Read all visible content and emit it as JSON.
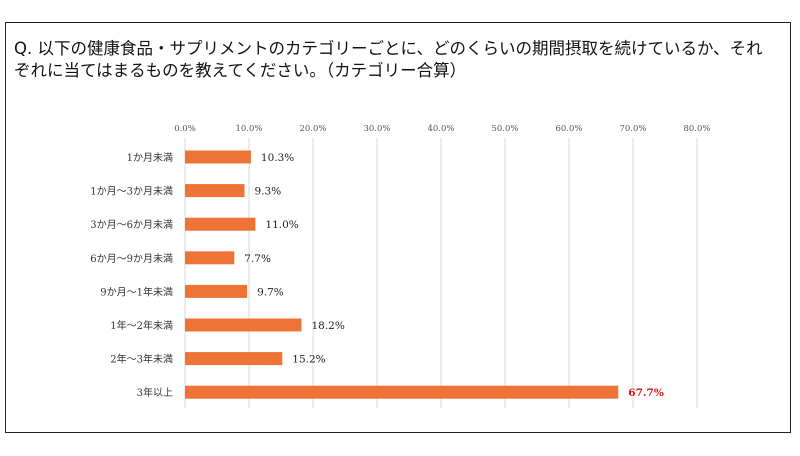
{
  "question": "Q. 以下の健康食品・サプリメントのカテゴリーごとに、どのくらいの期間摂取を続けているか、それぞれに当てはまるものを教えてください。（カテゴリー合算）",
  "colors": {
    "bar": "#ed7336",
    "highlight_label": "#d9140f",
    "grid": "#d9d9d9"
  },
  "chart_data": {
    "type": "bar",
    "orientation": "horizontal",
    "xlim": [
      0,
      80
    ],
    "x_ticks": [
      "0.0%",
      "10.0%",
      "20.0%",
      "30.0%",
      "40.0%",
      "50.0%",
      "60.0%",
      "70.0%",
      "80.0%"
    ],
    "tick_axis_position": "top",
    "grid": true,
    "categories": [
      "1か月未満",
      "1か月～3か月未満",
      "3か月～6か月未満",
      "6か月～9か月未満",
      "9か月～1年未満",
      "1年～2年未満",
      "2年～3年未満",
      "3年以上"
    ],
    "values": [
      10.3,
      9.3,
      11.0,
      7.7,
      9.7,
      18.2,
      15.2,
      67.7
    ],
    "labels": [
      "10.3%",
      "9.3%",
      "11.0%",
      "7.7%",
      "9.7%",
      "18.2%",
      "15.2%",
      "67.7%"
    ],
    "highlight_index": 7
  }
}
